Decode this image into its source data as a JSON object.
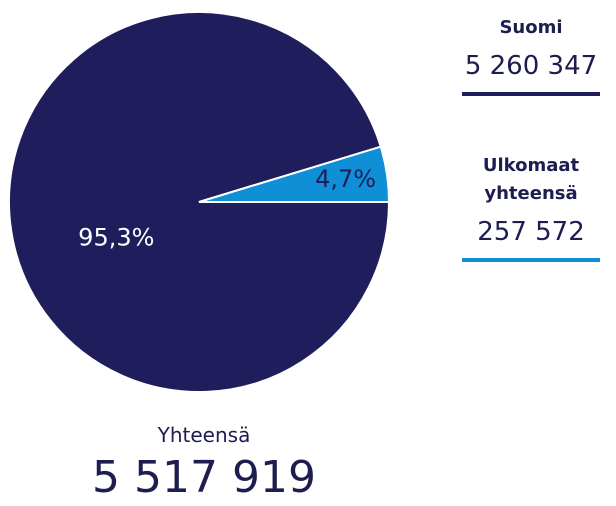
{
  "chart_data": {
    "type": "pie",
    "categories": [
      "Suomi",
      "Ulkomaat yhteensä"
    ],
    "values": [
      95.3,
      4.7
    ],
    "value_labels": [
      "95,3%",
      "4,7%"
    ],
    "colors": [
      "#1f1d5c",
      "#0f8fd6"
    ],
    "counts": [
      "5 260 347",
      "257 572"
    ],
    "total_label": "Yhteensä",
    "total": "5 517 919"
  }
}
